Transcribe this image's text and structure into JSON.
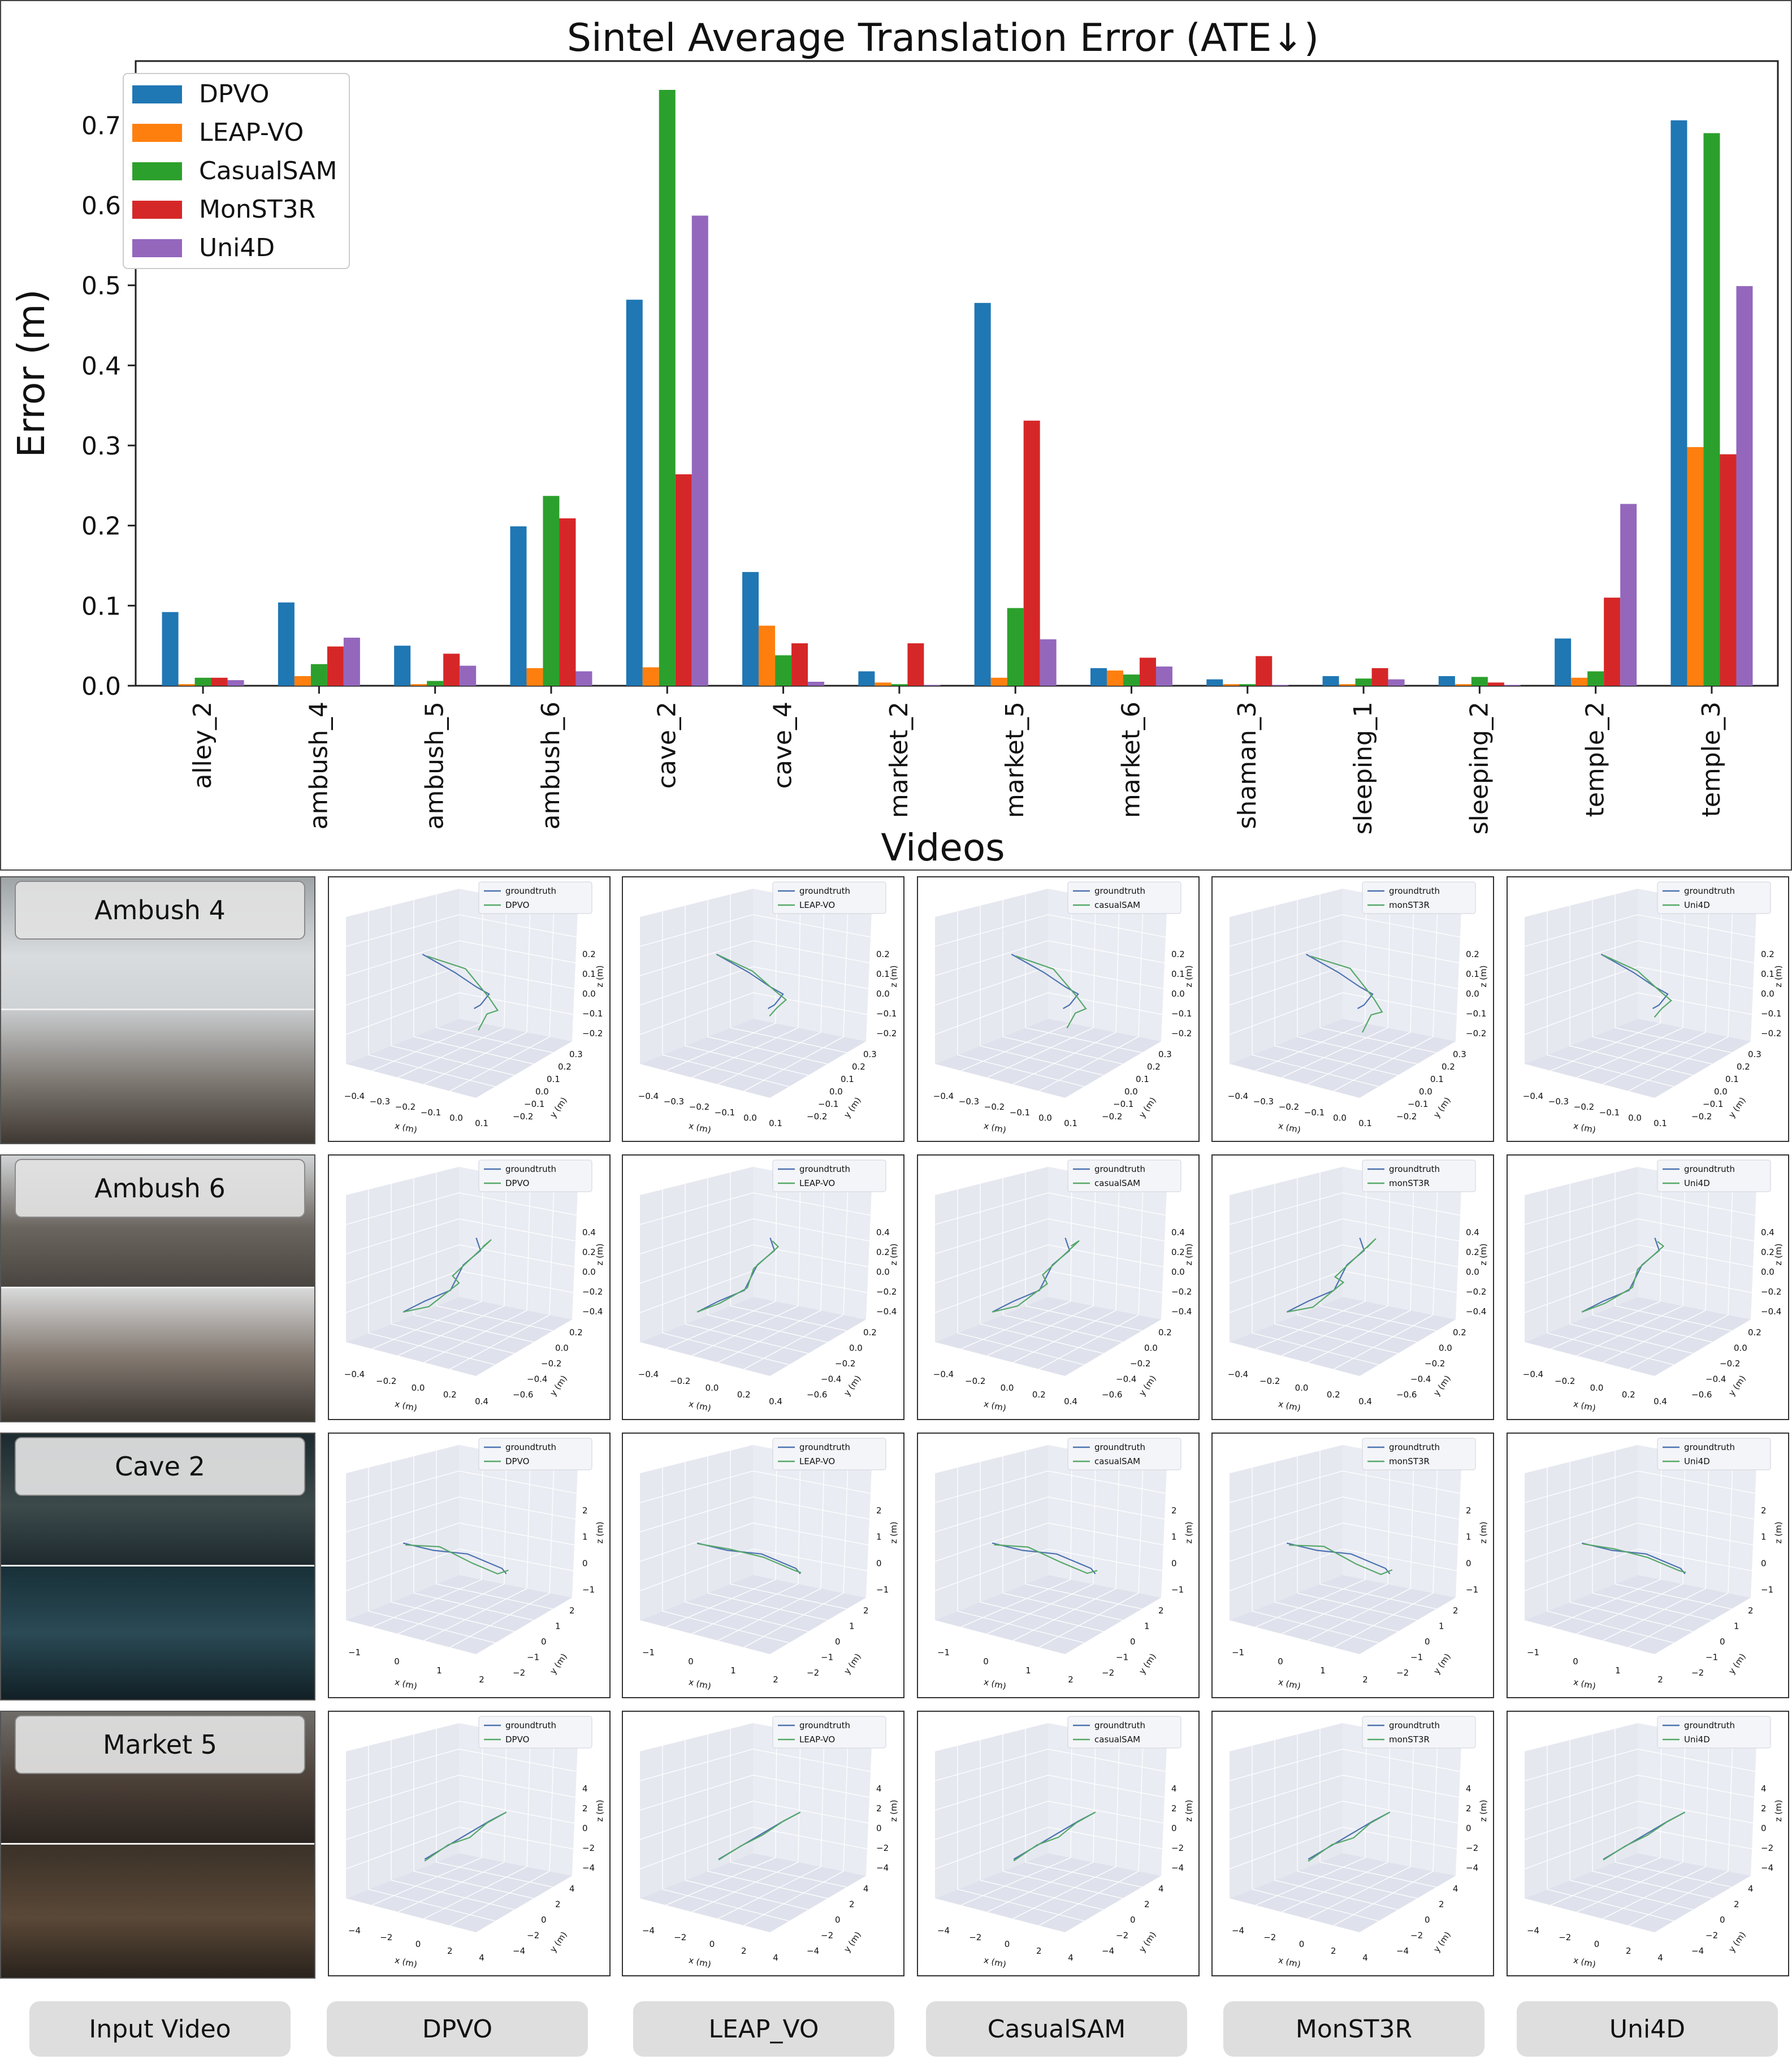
{
  "chart_data": [
    {
      "type": "bar",
      "title": "Sintel Average Translation Error (ATE↓)",
      "xlabel": "Videos",
      "ylabel": "Error (m)",
      "ylim": [
        0,
        0.78
      ],
      "yticks": [
        "0.0",
        "0.1",
        "0.2",
        "0.3",
        "0.4",
        "0.5",
        "0.6",
        "0.7"
      ],
      "grid": false,
      "legend_position": "top-left",
      "categories": [
        "alley_2",
        "ambush_4",
        "ambush_5",
        "ambush_6",
        "cave_2",
        "cave_4",
        "market_2",
        "market_5",
        "market_6",
        "shaman_3",
        "sleeping_1",
        "sleeping_2",
        "temple_2",
        "temple_3"
      ],
      "series": [
        {
          "name": "DPVO",
          "color": "#1f77b4",
          "values": [
            0.092,
            0.104,
            0.05,
            0.199,
            0.482,
            0.142,
            0.018,
            0.478,
            0.022,
            0.008,
            0.012,
            0.012,
            0.059,
            0.706
          ]
        },
        {
          "name": "LEAP-VO",
          "color": "#ff7f0e",
          "values": [
            0.002,
            0.012,
            0.002,
            0.022,
            0.023,
            0.075,
            0.004,
            0.01,
            0.019,
            0.002,
            0.002,
            0.002,
            0.01,
            0.298
          ]
        },
        {
          "name": "CasualSAM",
          "color": "#2ca02c",
          "values": [
            0.01,
            0.027,
            0.006,
            0.237,
            0.744,
            0.038,
            0.002,
            0.097,
            0.014,
            0.002,
            0.009,
            0.011,
            0.018,
            0.69
          ]
        },
        {
          "name": "MonST3R",
          "color": "#d62728",
          "values": [
            0.01,
            0.049,
            0.04,
            0.209,
            0.264,
            0.053,
            0.053,
            0.331,
            0.035,
            0.037,
            0.022,
            0.004,
            0.11,
            0.289
          ]
        },
        {
          "name": "Uni4D",
          "color": "#9467bd",
          "values": [
            0.007,
            0.06,
            0.025,
            0.018,
            0.587,
            0.005,
            0.001,
            0.058,
            0.024,
            0.001,
            0.008,
            0.001,
            0.227,
            0.499
          ]
        }
      ]
    },
    {
      "type": "line",
      "panel": "trajectory-grid",
      "rows": [
        "Ambush 4",
        "Ambush 6",
        "Cave 2",
        "Market 5"
      ],
      "columns": [
        "Input Video",
        "DPVO",
        "LEAP_VO",
        "CasualSAM",
        "MonST3R",
        "Uni4D"
      ],
      "legend_gt": "groundtruth",
      "legend_methods": [
        "DPVO",
        "LEAP-VO",
        "casualSAM",
        "monST3R",
        "Uni4D"
      ],
      "colors": {
        "groundtruth": "#4c72b0",
        "method": "#55a868"
      },
      "axis_titles": {
        "x": "x (m)",
        "y": "y (m)",
        "z": "z (m)"
      },
      "ticks": [
        {
          "z": [
            "0.2",
            "0.1",
            "0.0",
            "−0.1",
            "−0.2"
          ],
          "x": [
            "−0.4",
            "−0.3",
            "−0.2",
            "−0.1",
            "0.0",
            "0.1"
          ],
          "y": [
            "0.3",
            "0.2",
            "0.1",
            "0.0",
            "−0.1",
            "−0.2"
          ]
        },
        {
          "z": [
            "0.4",
            "0.2",
            "0.0",
            "−0.2",
            "−0.4"
          ],
          "x": [
            "−0.4",
            "−0.2",
            "0.0",
            "0.2",
            "0.4"
          ],
          "y": [
            "0.2",
            "0.0",
            "−0.2",
            "−0.4",
            "−0.6"
          ]
        },
        {
          "z": [
            "2",
            "1",
            "0",
            "−1"
          ],
          "x": [
            "−1",
            "0",
            "1",
            "2"
          ],
          "y": [
            "2",
            "1",
            "0",
            "−1",
            "−2"
          ]
        },
        {
          "z": [
            "4",
            "2",
            "0",
            "−2",
            "−4"
          ],
          "x": [
            "−4",
            "−2",
            "0",
            "2",
            "4"
          ],
          "y": [
            "4",
            "2",
            "0",
            "−2",
            "−4"
          ]
        }
      ]
    }
  ],
  "icons": {
    "scene_images": "video-frame-thumbnail"
  }
}
